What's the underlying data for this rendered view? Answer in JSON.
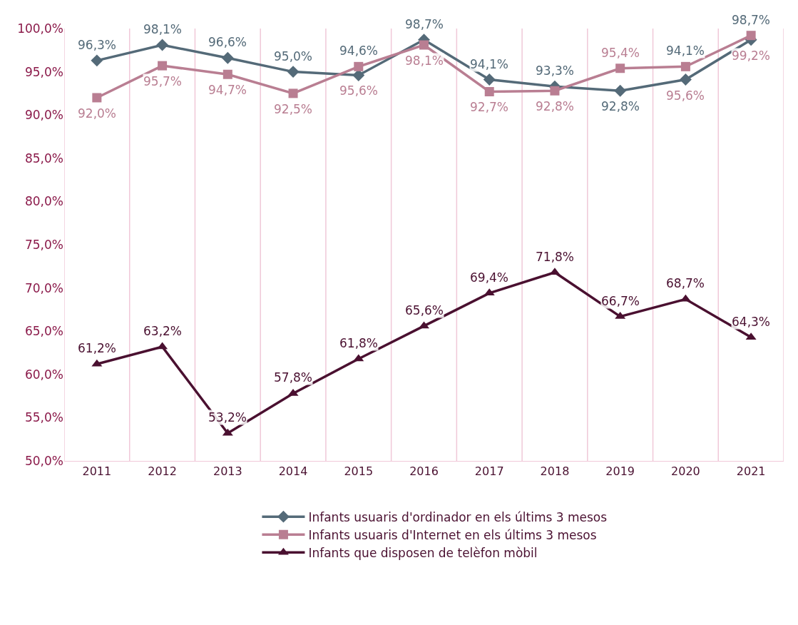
{
  "chart_data": {
    "type": "line",
    "categories": [
      "2011",
      "2012",
      "2013",
      "2014",
      "2015",
      "2016",
      "2017",
      "2018",
      "2019",
      "2020",
      "2021"
    ],
    "series": [
      {
        "name": "Infants usuaris d'ordinador en els últims 3 mesos",
        "color": "#546a78",
        "marker": "diamond",
        "values": [
          96.3,
          98.1,
          96.6,
          95.0,
          94.6,
          98.7,
          94.1,
          93.3,
          92.8,
          94.1,
          98.7
        ],
        "value_labels": [
          "96,3%",
          "98,1%",
          "96,6%",
          "95,0%",
          "94,6%",
          "98,7%",
          "94,1%",
          "93,3%",
          "92,8%",
          "94,1%",
          "98,7%"
        ]
      },
      {
        "name": "Infants usuaris d'Internet en els últims 3 mesos",
        "color": "#b97e92",
        "marker": "square",
        "values": [
          92.0,
          95.7,
          94.7,
          92.5,
          95.6,
          98.1,
          92.7,
          92.8,
          95.4,
          95.6,
          99.2
        ],
        "value_labels": [
          "92,0%",
          "95,7%",
          "94,7%",
          "92,5%",
          "95,6%",
          "98,1%",
          "92,7%",
          "92,8%",
          "95,4%",
          "95,6%",
          "99,2%"
        ]
      },
      {
        "name": "Infants que disposen de telèfon mòbil",
        "color": "#4a1030",
        "marker": "triangle",
        "values": [
          61.2,
          63.2,
          53.2,
          57.8,
          61.8,
          65.6,
          69.4,
          71.8,
          66.7,
          68.7,
          64.3
        ],
        "value_labels": [
          "61,2%",
          "63,2%",
          "53,2%",
          "57,8%",
          "61,8%",
          "65,6%",
          "69,4%",
          "71,8%",
          "66,7%",
          "68,7%",
          "64,3%"
        ]
      }
    ],
    "ylim": [
      50,
      100
    ],
    "yticks": [
      {
        "value": 50,
        "label": "50,0%"
      },
      {
        "value": 55,
        "label": "55,0%"
      },
      {
        "value": 60,
        "label": "60,0%"
      },
      {
        "value": 65,
        "label": "65,0%"
      },
      {
        "value": 70,
        "label": "70,0%"
      },
      {
        "value": 75,
        "label": "75,0%"
      },
      {
        "value": 80,
        "label": "80,0%"
      },
      {
        "value": 85,
        "label": "85,0%"
      },
      {
        "value": 90,
        "label": "90,0%"
      },
      {
        "value": 95,
        "label": "95,0%"
      },
      {
        "value": 100,
        "label": "100,0%"
      }
    ],
    "grid": "x",
    "legend": "bottom",
    "line_style": "solid"
  }
}
